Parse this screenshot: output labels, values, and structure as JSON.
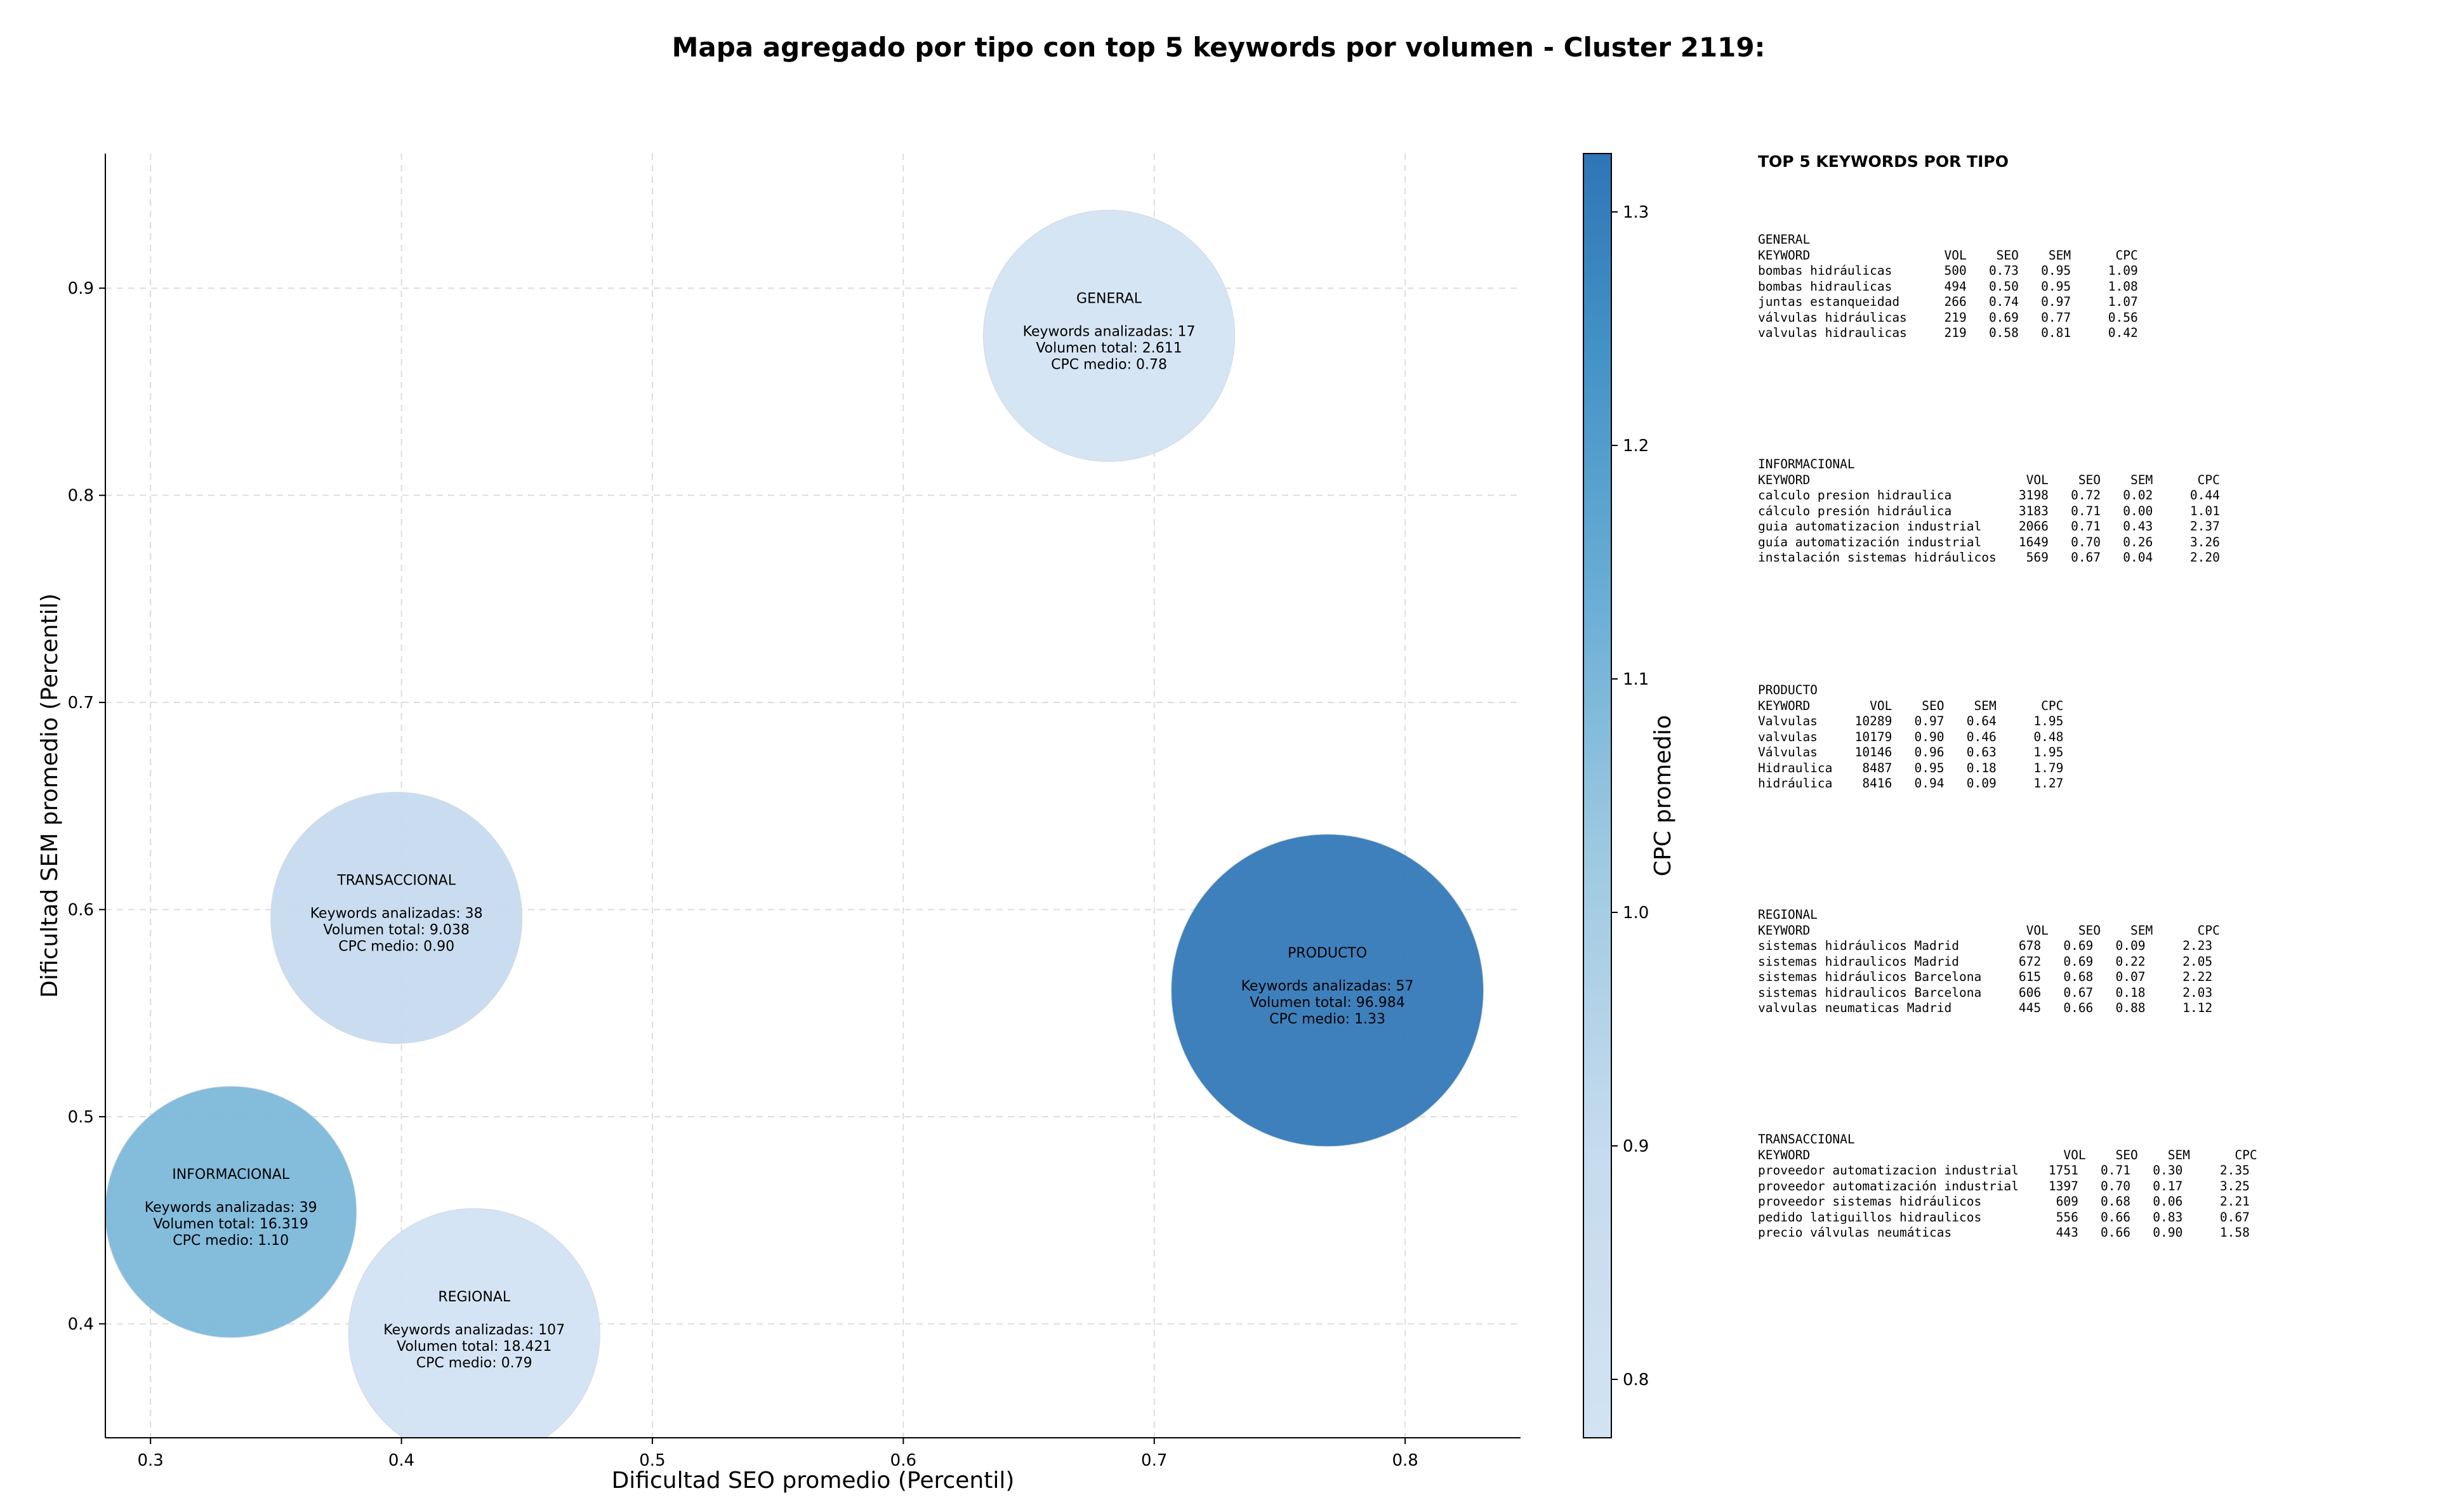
{
  "chart_data": {
    "type": "scatter",
    "title": "Mapa agregado por tipo con top 5 keywords por volumen - Cluster 2119:",
    "xlabel": "Dificultad SEO promedio (Percentil)",
    "ylabel": "Dificultad SEM promedio (Percentil)",
    "xlim": [
      0.282,
      0.846
    ],
    "ylim": [
      0.345,
      0.965
    ],
    "xticks": [
      "0.3",
      "0.4",
      "0.5",
      "0.6",
      "0.7",
      "0.8"
    ],
    "yticks": [
      "0.4",
      "0.5",
      "0.6",
      "0.7",
      "0.8",
      "0.9"
    ],
    "grid": true,
    "colorbar": {
      "label": "CPC promedio",
      "range": [
        0.775,
        1.325
      ],
      "ticks": [
        "0.8",
        "0.9",
        "1.0",
        "1.1",
        "1.2",
        "1.3"
      ],
      "colormap": "Blues"
    },
    "points": [
      {
        "name": "GENERAL",
        "x": 0.682,
        "y": 0.877,
        "size": 2611,
        "cpc": 0.78,
        "lines": [
          "Keywords analizadas: 17",
          "Volumen total: 2.611",
          "CPC medio: 0.78"
        ]
      },
      {
        "name": "TRANSACCIONAL",
        "x": 0.398,
        "y": 0.596,
        "size": 9038,
        "cpc": 0.9,
        "lines": [
          "Keywords analizadas: 38",
          "Volumen total: 9.038",
          "CPC medio: 0.90"
        ]
      },
      {
        "name": "PRODUCTO",
        "x": 0.769,
        "y": 0.561,
        "size": 96984,
        "cpc": 1.33,
        "lines": [
          "Keywords analizadas: 57",
          "Volumen total: 96.984",
          "CPC medio: 1.33"
        ]
      },
      {
        "name": "INFORMACIONAL",
        "x": 0.332,
        "y": 0.454,
        "size": 16319,
        "cpc": 1.1,
        "lines": [
          "Keywords analizadas: 39",
          "Volumen total: 16.319",
          "CPC medio: 1.10"
        ]
      },
      {
        "name": "REGIONAL",
        "x": 0.429,
        "y": 0.395,
        "size": 18421,
        "cpc": 0.79,
        "lines": [
          "Keywords analizadas: 107",
          "Volumen total: 18.421",
          "CPC medio: 0.79"
        ]
      }
    ]
  },
  "sidebar": {
    "title": "TOP 5 KEYWORDS POR TIPO",
    "blocks": [
      {
        "lines": [
          "GENERAL",
          "KEYWORD                  VOL    SEO    SEM      CPC",
          "bombas hidráulicas       500   0.73   0.95     1.09",
          "bombas hidraulicas       494   0.50   0.95     1.08",
          "juntas estanqueidad      266   0.74   0.97     1.07",
          "válvulas hidráulicas     219   0.69   0.77     0.56",
          "valvulas hidraulicas     219   0.58   0.81     0.42"
        ]
      },
      {
        "lines": [
          "INFORMACIONAL",
          "KEYWORD                             VOL    SEO    SEM      CPC",
          "calculo presion hidraulica         3198   0.72   0.02     0.44",
          "cálculo presión hidráulica         3183   0.71   0.00     1.01",
          "guia automatizacion industrial     2066   0.71   0.43     2.37",
          "guía automatización industrial     1649   0.70   0.26     3.26",
          "instalación sistemas hidráulicos    569   0.67   0.04     2.20"
        ]
      },
      {
        "lines": [
          "PRODUCTO",
          "KEYWORD        VOL    SEO    SEM      CPC",
          "Valvulas     10289   0.97   0.64     1.95",
          "valvulas     10179   0.90   0.46     0.48",
          "Válvulas     10146   0.96   0.63     1.95",
          "Hidraulica    8487   0.95   0.18     1.79",
          "hidráulica    8416   0.94   0.09     1.27"
        ]
      },
      {
        "lines": [
          "REGIONAL",
          "KEYWORD                             VOL    SEO    SEM      CPC",
          "sistemas hidráulicos Madrid        678   0.69   0.09     2.23",
          "sistemas hidraulicos Madrid        672   0.69   0.22     2.05",
          "sistemas hidráulicos Barcelona     615   0.68   0.07     2.22",
          "sistemas hidraulicos Barcelona     606   0.67   0.18     2.03",
          "valvulas neumaticas Madrid         445   0.66   0.88     1.12"
        ]
      },
      {
        "lines": [
          "TRANSACCIONAL",
          "KEYWORD                                  VOL    SEO    SEM      CPC",
          "proveedor automatizacion industrial    1751   0.71   0.30     2.35",
          "proveedor automatización industrial    1397   0.70   0.17     3.25",
          "proveedor sistemas hidráulicos          609   0.68   0.06     2.21",
          "pedido latiguillos hidraulicos          556   0.66   0.83     0.67",
          "precio válvulas neumáticas              443   0.66   0.90     1.58"
        ]
      }
    ]
  }
}
